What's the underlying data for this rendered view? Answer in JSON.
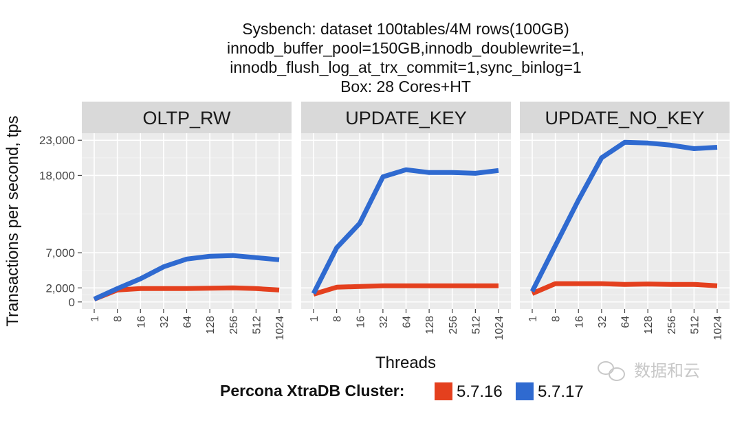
{
  "chart_data": {
    "type": "line",
    "title_lines": [
      "Sysbench: dataset 100tables/4M rows(100GB)",
      "innodb_buffer_pool=150GB,innodb_doublewrite=1,",
      "innodb_flush_log_at_trx_commit=1,sync_binlog=1",
      "Box: 28 Cores+HT"
    ],
    "xlabel": "Threads",
    "ylabel": "Transactions per second, tps",
    "x": [
      "1",
      "8",
      "16",
      "32",
      "64",
      "128",
      "256",
      "512",
      "1024"
    ],
    "y_ticks": [
      0,
      2000,
      7000,
      18000,
      23000
    ],
    "y_tick_labels": [
      "0",
      "2,000",
      "7,000",
      "18,000",
      "23,000"
    ],
    "ylim": [
      -1000,
      24000
    ],
    "grid": true,
    "legend": {
      "title": "Percona XtraDB Cluster:",
      "placement": "bottom",
      "entries": [
        "5.7.16",
        "5.7.17"
      ]
    },
    "colors": {
      "5.7.16": "#e4401e",
      "5.7.17": "#2f6ad0"
    },
    "panels": [
      {
        "name": "OLTP_RW",
        "series": [
          {
            "name": "5.7.16",
            "values": [
              400,
              1700,
              1900,
              1900,
              1900,
              1950,
              2000,
              1900,
              1700
            ]
          },
          {
            "name": "5.7.17",
            "values": [
              400,
              1900,
              3300,
              5000,
              6100,
              6500,
              6600,
              6300,
              6000
            ]
          }
        ]
      },
      {
        "name": "UPDATE_KEY",
        "series": [
          {
            "name": "5.7.16",
            "values": [
              1100,
              2100,
              2200,
              2300,
              2300,
              2300,
              2300,
              2300,
              2300
            ]
          },
          {
            "name": "5.7.17",
            "values": [
              1200,
              7700,
              11200,
              17800,
              18800,
              18400,
              18400,
              18300,
              18700
            ]
          }
        ]
      },
      {
        "name": "UPDATE_NO_KEY",
        "series": [
          {
            "name": "5.7.16",
            "values": [
              1200,
              2600,
              2600,
              2600,
              2500,
              2550,
              2500,
              2500,
              2300
            ]
          },
          {
            "name": "5.7.17",
            "values": [
              1500,
              8000,
              14500,
              20500,
              22700,
              22600,
              22300,
              21800,
              22000
            ]
          }
        ]
      }
    ]
  },
  "watermark": {
    "text": "数据和云",
    "icon": "wechat-bubble-icon"
  }
}
